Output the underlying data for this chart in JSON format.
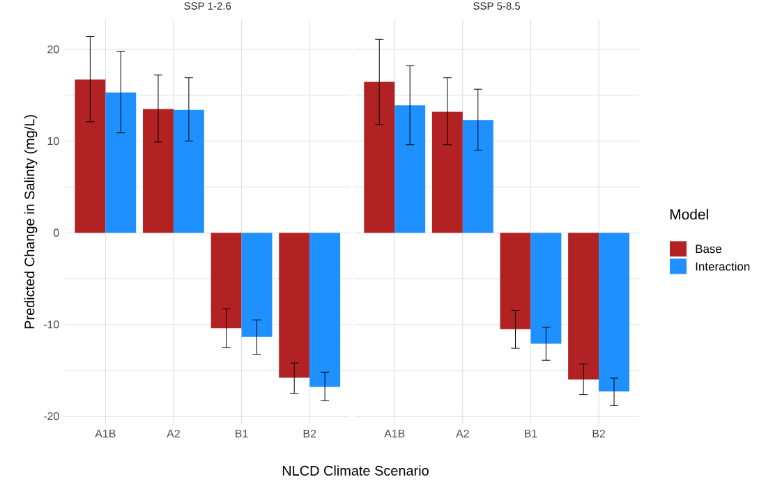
{
  "chart_data": [
    {
      "type": "bar",
      "title": "SSP 1-2.6",
      "xlabel": "NLCD Climate Scenario",
      "ylabel": "Predicted Change in Salinty (mg/L)",
      "categories": [
        "A1B",
        "A2",
        "B1",
        "B2"
      ],
      "series": [
        {
          "color": "#b22222",
          "values": [
            16.7,
            13.5,
            -10.4,
            -15.8
          ],
          "errors": [
            [
              12.1,
              21.4
            ],
            [
              9.9,
              17.2
            ],
            [
              -12.5,
              -8.3
            ],
            [
              -17.5,
              -14.2
            ]
          ]
        },
        {
          "color": "#1e90ff",
          "values": [
            15.3,
            13.4,
            -11.35,
            -16.8
          ],
          "errors": [
            [
              10.9,
              19.8
            ],
            [
              10.0,
              16.9
            ],
            [
              -13.25,
              -9.5
            ],
            [
              -18.3,
              -15.2
            ]
          ]
        }
      ],
      "ylim": [
        -20.9,
        23.3
      ],
      "yticks": [
        -20,
        {
          "value": -15,
          "label": null
        },
        -10,
        {
          "value": -5,
          "label": null
        },
        0,
        {
          "value": 5,
          "label": null
        },
        10,
        {
          "value": 15,
          "label": null
        },
        20
      ],
      "grid": true
    },
    {
      "type": "bar",
      "title": "SSP 5-8.5",
      "legend_title": "Model",
      "categories": [
        "A1B",
        "A2",
        "B1",
        "B2"
      ],
      "series": [
        {
          "name": "Base",
          "color": "#b22222",
          "values": [
            16.45,
            13.2,
            -10.5,
            -16.0
          ],
          "errors": [
            [
              11.8,
              21.1
            ],
            [
              9.6,
              16.9
            ],
            [
              -12.6,
              -8.45
            ],
            [
              -17.65,
              -14.3
            ]
          ]
        },
        {
          "name": "Interaction",
          "color": "#1e90ff",
          "values": [
            13.9,
            12.3,
            -12.1,
            -17.3
          ],
          "errors": [
            [
              9.6,
              18.2
            ],
            [
              9.0,
              15.65
            ],
            [
              -13.9,
              -10.3
            ],
            [
              -18.85,
              -15.85
            ]
          ]
        }
      ],
      "ylim": [
        -20.9,
        23.3
      ],
      "yticks": [
        -20,
        {
          "value": -15,
          "label": null
        },
        -10,
        {
          "value": -5,
          "label": null
        },
        0,
        {
          "value": 5,
          "label": null
        },
        10,
        {
          "value": 15,
          "label": null
        },
        20
      ],
      "grid": true,
      "legend": "right",
      "tick_labels": "x"
    }
  ]
}
